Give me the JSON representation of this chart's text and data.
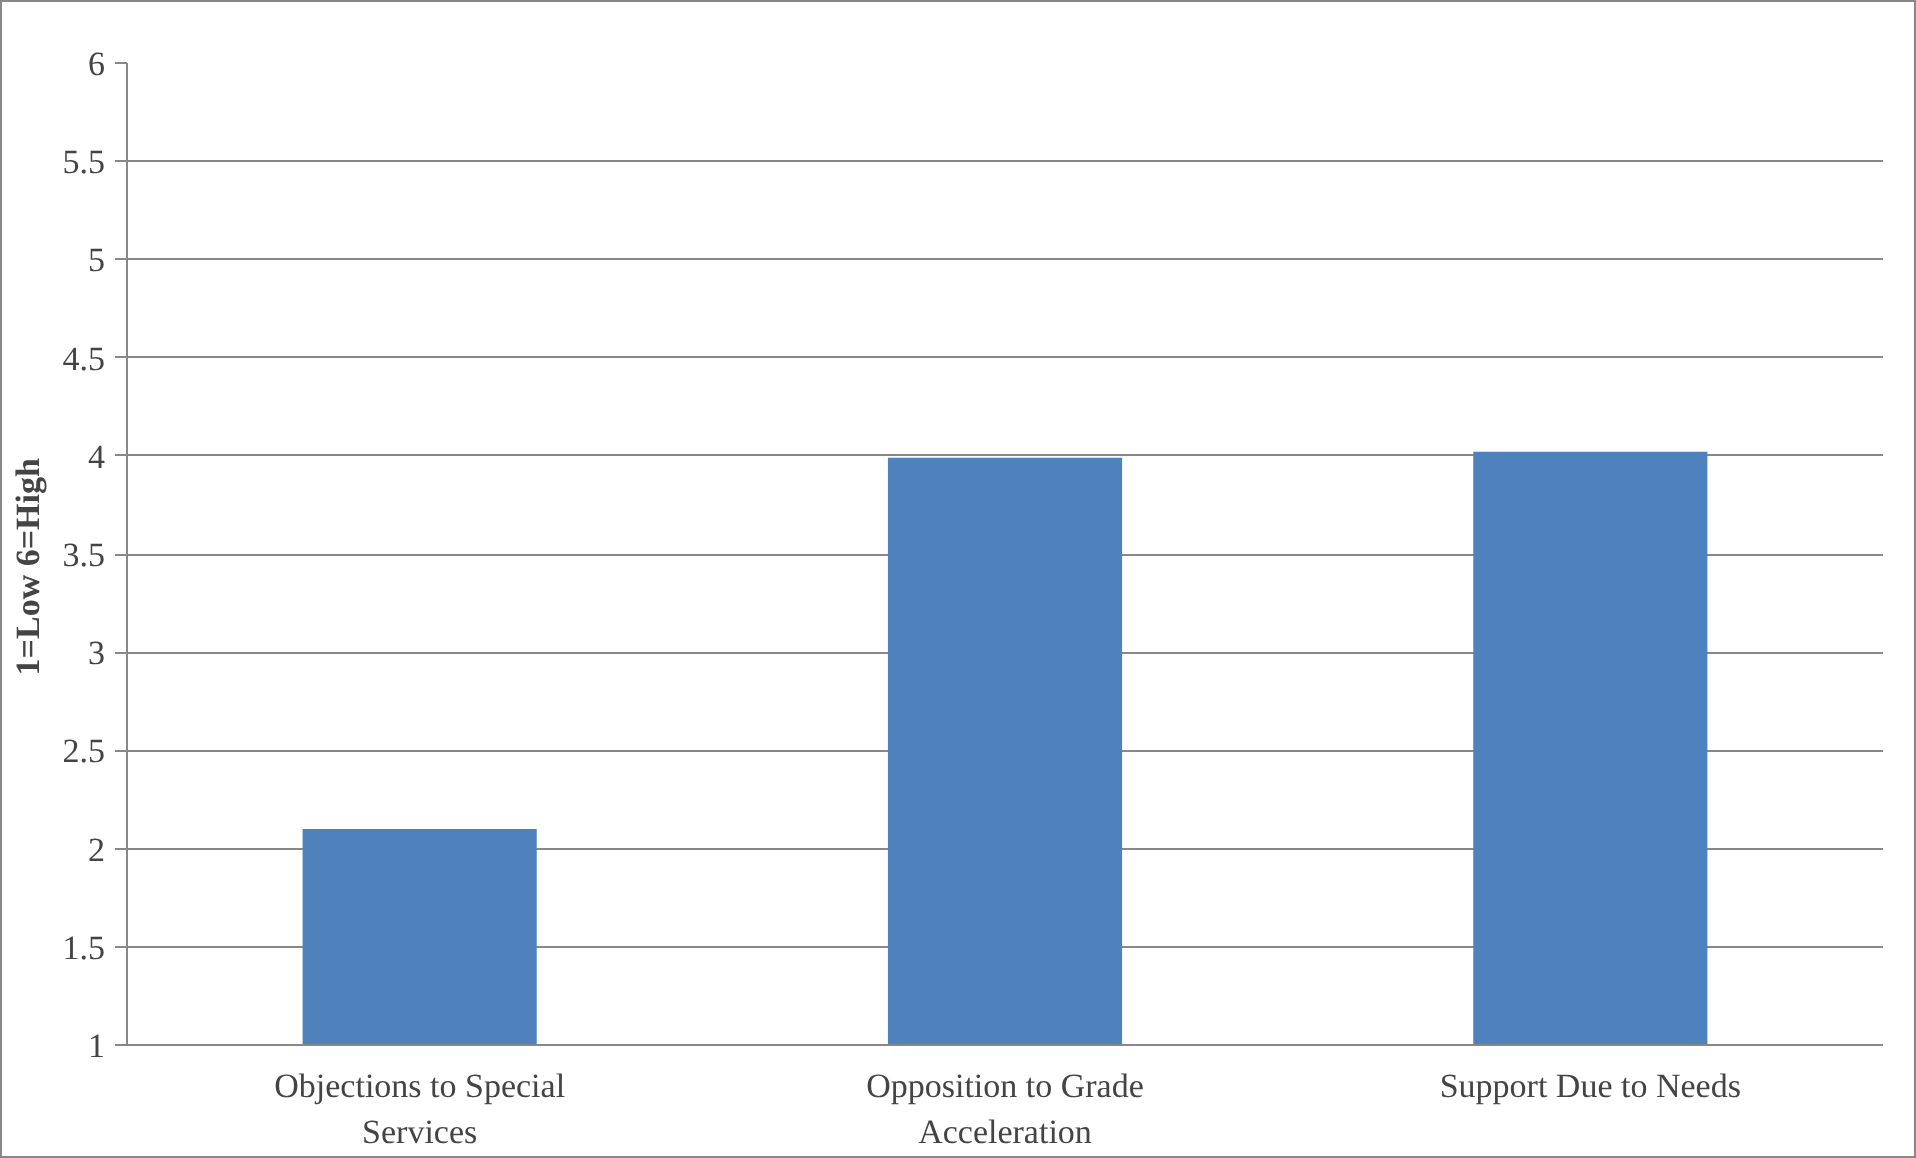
{
  "chart_data": {
    "type": "bar",
    "ylabel": "1=Low    6=High",
    "categories": [
      "Objections to Special Services",
      "Opposition to Grade Acceleration",
      "Support Due to Needs"
    ],
    "values": [
      2.1,
      3.99,
      4.02
    ],
    "color": "#4f81bd",
    "ylim": [
      1,
      6
    ],
    "yticks": [
      1,
      1.5,
      2,
      2.5,
      3,
      3.5,
      4,
      4.5,
      5,
      5.5,
      6
    ],
    "grid": "y"
  }
}
